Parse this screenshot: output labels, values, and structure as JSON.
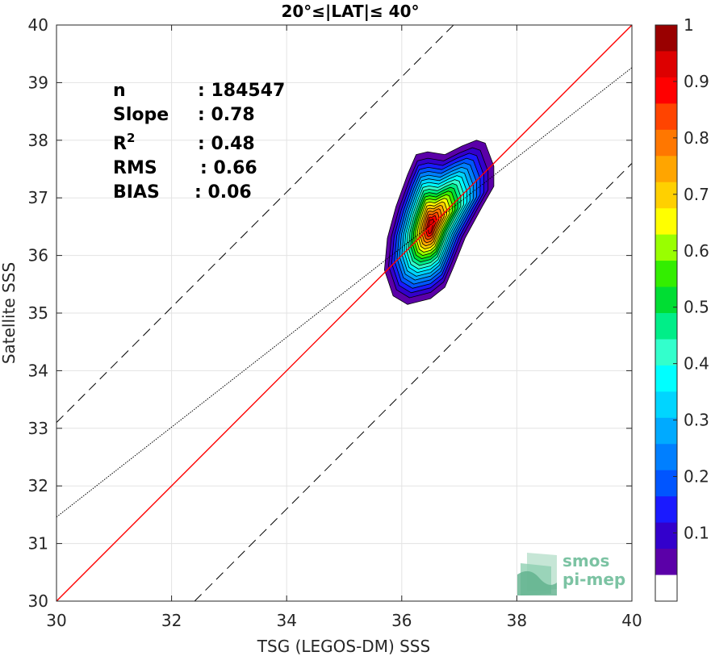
{
  "chart_data": {
    "type": "contour-density",
    "title": "20°≤|LAT|≤ 40°",
    "xlabel": "TSG (LEGOS-DM) SSS",
    "ylabel": "Satellite SSS",
    "xlim": [
      30,
      40
    ],
    "ylim": [
      30,
      40
    ],
    "xticks": [
      30,
      32,
      34,
      36,
      38,
      40
    ],
    "yticks": [
      30,
      31,
      32,
      33,
      34,
      35,
      36,
      37,
      38,
      39,
      40
    ],
    "grid": true,
    "stats": [
      {
        "label": "n",
        "value": ": 184547"
      },
      {
        "label": "Slope",
        "value": ": 0.78"
      },
      {
        "label": "R",
        "sup": "2",
        "value": ": 0.48"
      },
      {
        "label": "RMS",
        "value": ": 0.66"
      },
      {
        "label": "BIAS",
        "value": ": 0.06"
      }
    ],
    "lines": {
      "one_to_one": {
        "color": "#ff0000",
        "slope": 1,
        "intercept": 0
      },
      "regression": {
        "color": "#000000",
        "style": "dotted",
        "slope": 0.78,
        "intercept": 8.06
      },
      "offset_bounds": [
        {
          "style": "dashed",
          "slope": 1,
          "intercept": 3.1
        },
        {
          "style": "dashed",
          "slope": 1,
          "intercept": -2.4
        }
      ]
    },
    "density": {
      "peak": [
        36.5,
        36.5
      ],
      "levels": [
        0.05,
        0.1,
        0.2,
        0.3,
        0.4,
        0.5,
        0.6,
        0.7,
        0.8,
        0.9,
        1.0
      ]
    },
    "colorbar": {
      "ticks": [
        "0.1",
        "0.2",
        "0.3",
        "0.4",
        "0.5",
        "0.6",
        "0.7",
        "0.8",
        "0.9",
        "1"
      ],
      "colors": [
        "#ffffff",
        "#5b00a8",
        "#3300cc",
        "#1a1aff",
        "#0055ff",
        "#007fff",
        "#00aaff",
        "#00d5ff",
        "#00ffff",
        "#33ffcc",
        "#00ee88",
        "#00dd33",
        "#33ee00",
        "#99ff00",
        "#ffff00",
        "#ffd000",
        "#ffa500",
        "#ff7700",
        "#ff4400",
        "#ff0000",
        "#dd0000",
        "#990000"
      ]
    }
  },
  "logo": {
    "line1": "smos",
    "line2": "pi-mep",
    "color": "#7cc3a3"
  }
}
